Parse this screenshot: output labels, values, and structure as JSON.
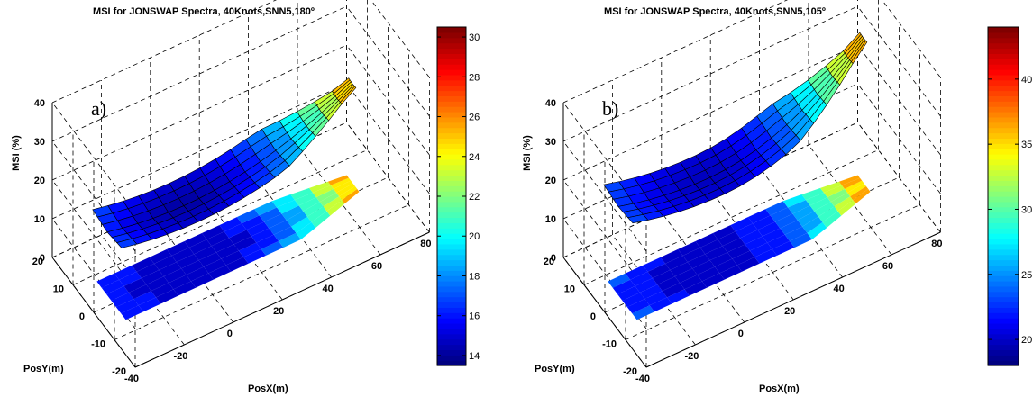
{
  "chart_data": [
    {
      "type": "surface",
      "panel_label": "a)",
      "title": "MSI for JONSWAP Spectra, 40Knots,SNN5,180º",
      "xlabel": "PosX(m)",
      "ylabel": "PosY(m)",
      "zlabel": "MSI (%)",
      "x_ticks": [
        "-40",
        "-20",
        "0",
        "20",
        "40",
        "60",
        "80"
      ],
      "y_ticks": [
        "-20",
        "-10",
        "0",
        "10",
        "20"
      ],
      "z_ticks": [
        "0",
        "10",
        "20",
        "30",
        "40"
      ],
      "xlim": [
        -40,
        80
      ],
      "ylim": [
        -20,
        20
      ],
      "zlim": [
        0,
        40
      ],
      "grid": true,
      "colorbar": {
        "min": 13.5,
        "max": 30.5,
        "ticks": [
          "14",
          "16",
          "18",
          "20",
          "22",
          "24",
          "26",
          "28",
          "30"
        ]
      },
      "surface_profile": {
        "x": [
          -30,
          -15,
          0,
          15,
          30,
          45,
          60
        ],
        "msi": [
          18,
          15.5,
          14,
          16,
          20,
          25,
          30
        ]
      },
      "contour": "filled contour projected at z = 0"
    },
    {
      "type": "surface",
      "panel_label": "b)",
      "title": "MSI for JONSWAP Spectra, 40Knots,SNN5,105º",
      "xlabel": "PosX(m)",
      "ylabel": "PosY(m)",
      "zlabel": "MSI (%)",
      "x_ticks": [
        "-40",
        "-20",
        "0",
        "20",
        "40",
        "60",
        "80"
      ],
      "y_ticks": [
        "-20",
        "-10",
        "0",
        "10",
        "20"
      ],
      "z_ticks": [
        "0",
        "10",
        "20",
        "30",
        "40"
      ],
      "xlim": [
        -40,
        80
      ],
      "ylim": [
        -20,
        20
      ],
      "zlim": [
        0,
        40
      ],
      "grid": true,
      "colorbar": {
        "min": 18,
        "max": 44,
        "ticks": [
          "20",
          "25",
          "30",
          "35",
          "40"
        ]
      },
      "surface_profile": {
        "x": [
          -30,
          -15,
          0,
          15,
          30,
          45,
          60
        ],
        "msi": [
          22,
          19,
          20,
          24,
          30,
          36,
          42
        ]
      },
      "contour": "filled contour projected at z = 0"
    }
  ]
}
